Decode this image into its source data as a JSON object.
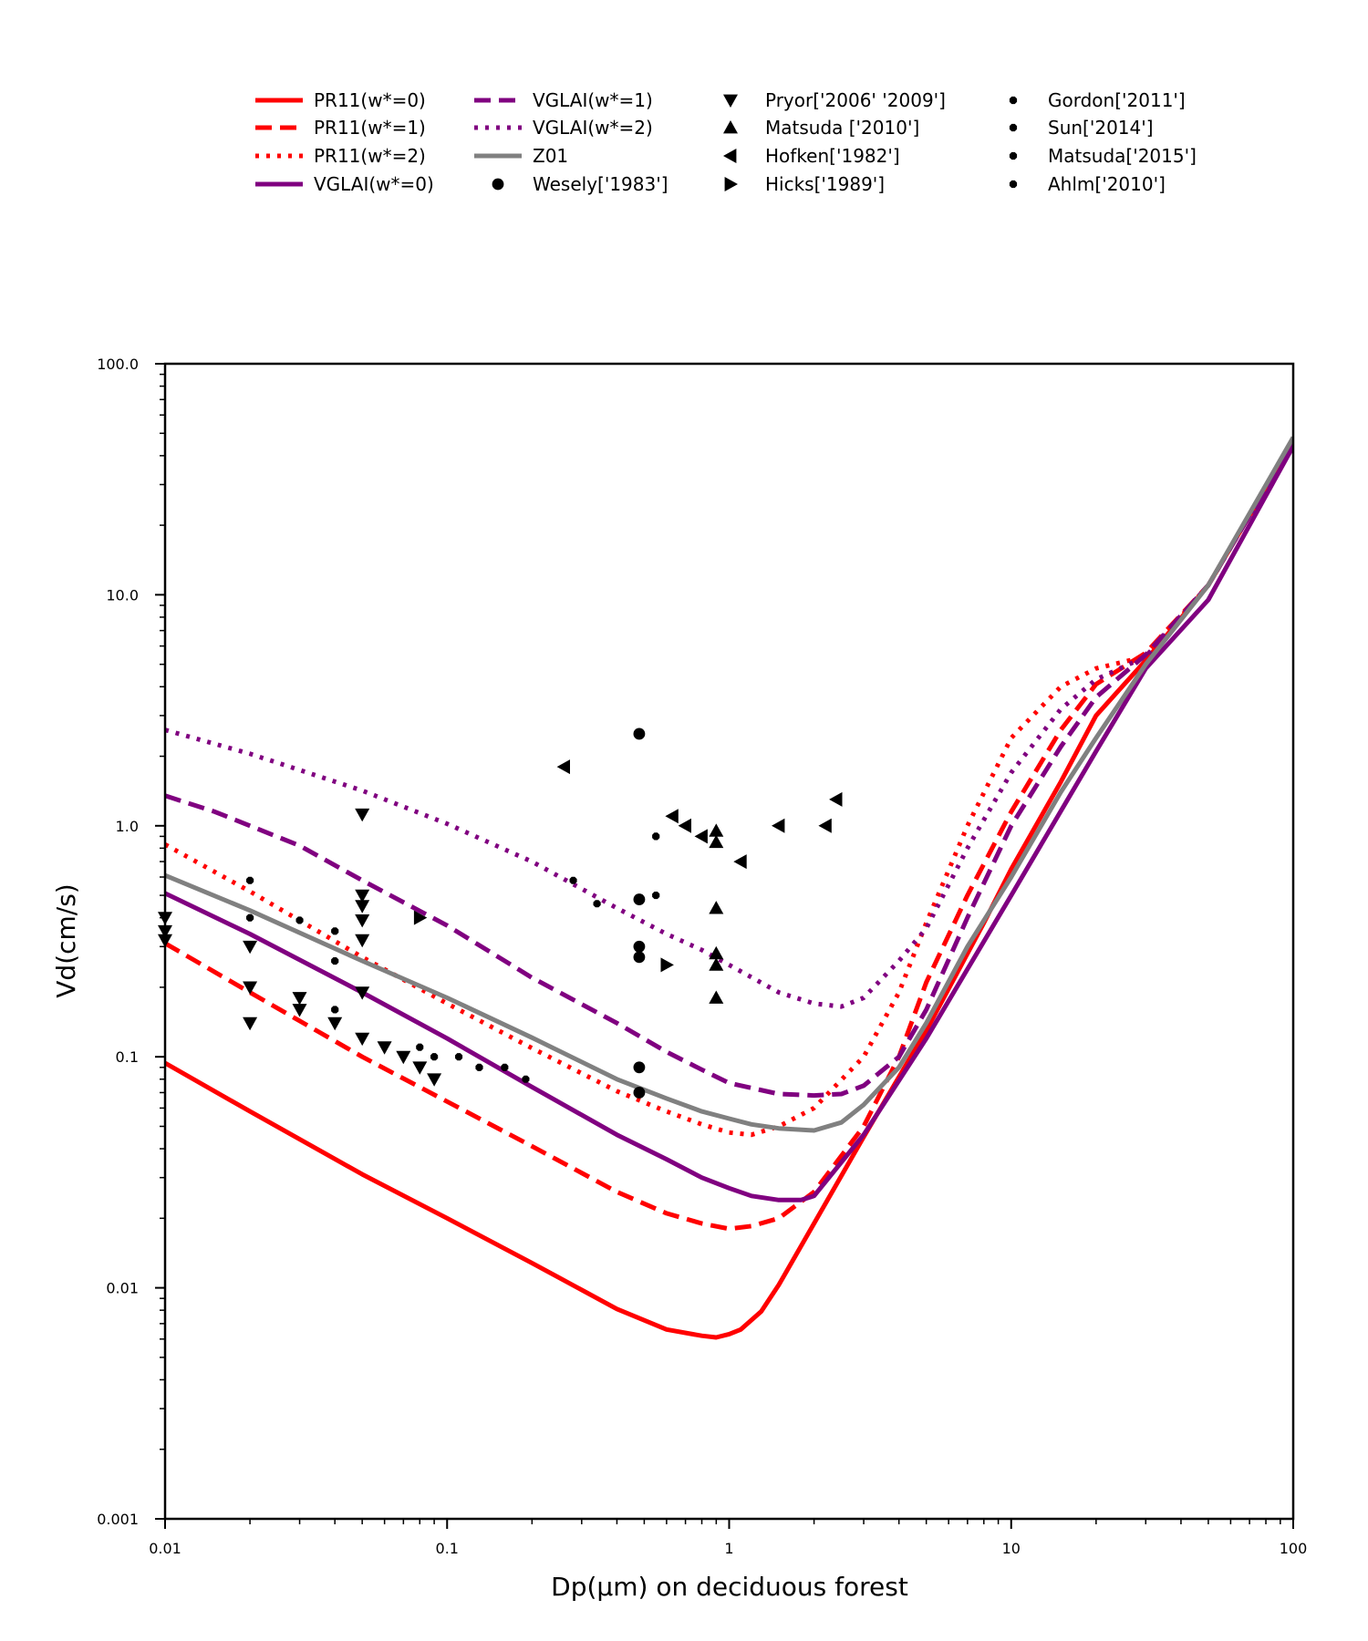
{
  "chart_data": {
    "type": "line",
    "xlabel": "Dp(μm) on deciduous forest",
    "ylabel": "Vd(cm/s)",
    "xscale": "log",
    "yscale": "log",
    "xlim": [
      0.01,
      100
    ],
    "ylim": [
      0.001,
      100
    ],
    "xticks": [
      0.01,
      0.1,
      1,
      10,
      100
    ],
    "xtick_labels": [
      "0.01",
      "0.1",
      "1",
      "10",
      "100"
    ],
    "yticks": [
      0.001,
      0.01,
      0.1,
      1,
      10,
      100
    ],
    "ytick_labels": [
      "0.001",
      "0.01",
      "0.1",
      "1.0",
      "10.0",
      "100.0"
    ],
    "grid": false,
    "legend_position": "top",
    "series": [
      {
        "name": "PR11(w*=0)",
        "kind": "line",
        "color": "#ff0000",
        "dash": "solid",
        "x": [
          0.01,
          0.02,
          0.05,
          0.1,
          0.2,
          0.4,
          0.6,
          0.8,
          0.9,
          1.0,
          1.1,
          1.3,
          1.5,
          2,
          3,
          5,
          8,
          10,
          15,
          20,
          30,
          50,
          100
        ],
        "y": [
          0.094,
          0.058,
          0.031,
          0.02,
          0.0128,
          0.0081,
          0.0066,
          0.0062,
          0.0061,
          0.0063,
          0.0066,
          0.0079,
          0.0103,
          0.019,
          0.045,
          0.13,
          0.38,
          0.65,
          1.55,
          3.0,
          5.2,
          11,
          46
        ]
      },
      {
        "name": "PR11(w*=1)",
        "kind": "line",
        "color": "#ff0000",
        "dash": "dashed",
        "x": [
          0.01,
          0.02,
          0.05,
          0.1,
          0.2,
          0.4,
          0.6,
          0.8,
          1.0,
          1.2,
          1.5,
          2,
          3,
          4,
          5,
          7,
          10,
          15,
          20,
          30,
          50,
          100
        ],
        "y": [
          0.31,
          0.19,
          0.1,
          0.064,
          0.041,
          0.026,
          0.021,
          0.019,
          0.018,
          0.0185,
          0.02,
          0.026,
          0.05,
          0.1,
          0.21,
          0.5,
          1.15,
          2.6,
          4.1,
          5.6,
          11,
          46
        ]
      },
      {
        "name": "PR11(w*=2)",
        "kind": "line",
        "color": "#ff0000",
        "dash": "dotted",
        "x": [
          0.01,
          0.02,
          0.05,
          0.1,
          0.2,
          0.4,
          0.6,
          0.8,
          1.0,
          1.2,
          1.5,
          2,
          3,
          4,
          5,
          7,
          10,
          15,
          20,
          30,
          50,
          100
        ],
        "y": [
          0.83,
          0.52,
          0.27,
          0.17,
          0.109,
          0.071,
          0.058,
          0.051,
          0.047,
          0.046,
          0.05,
          0.06,
          0.1,
          0.19,
          0.38,
          1.0,
          2.4,
          4.0,
          4.8,
          5.4,
          11,
          46
        ]
      },
      {
        "name": "VGLAI(w*=0)",
        "kind": "line",
        "color": "#800080",
        "dash": "solid",
        "x": [
          0.01,
          0.02,
          0.05,
          0.1,
          0.2,
          0.4,
          0.6,
          0.8,
          1.0,
          1.2,
          1.5,
          1.8,
          2,
          3,
          5,
          10,
          20,
          30,
          50,
          100
        ],
        "y": [
          0.51,
          0.34,
          0.19,
          0.12,
          0.074,
          0.046,
          0.036,
          0.03,
          0.027,
          0.025,
          0.024,
          0.024,
          0.025,
          0.046,
          0.12,
          0.5,
          2.1,
          4.8,
          9.5,
          44
        ]
      },
      {
        "name": "VGLAI(w*=1)",
        "kind": "line",
        "color": "#800080",
        "dash": "dashed",
        "x": [
          0.01,
          0.015,
          0.02,
          0.03,
          0.05,
          0.1,
          0.2,
          0.4,
          0.6,
          0.8,
          1.0,
          1.5,
          2,
          2.5,
          3,
          4,
          5,
          7,
          10,
          15,
          20,
          30,
          50,
          100
        ],
        "y": [
          1.35,
          1.15,
          1.0,
          0.82,
          0.58,
          0.37,
          0.22,
          0.14,
          0.105,
          0.088,
          0.077,
          0.069,
          0.068,
          0.069,
          0.075,
          0.1,
          0.16,
          0.4,
          1.0,
          2.2,
          3.6,
          5.5,
          11,
          46
        ]
      },
      {
        "name": "VGLAI(w*=2)",
        "kind": "line",
        "color": "#800080",
        "dash": "dotted",
        "x": [
          0.01,
          0.02,
          0.05,
          0.1,
          0.2,
          0.4,
          0.6,
          0.8,
          1.0,
          1.5,
          2,
          2.5,
          3,
          4,
          5,
          7,
          10,
          15,
          20,
          30,
          50,
          100
        ],
        "y": [
          2.6,
          2.05,
          1.42,
          1.02,
          0.7,
          0.44,
          0.34,
          0.29,
          0.25,
          0.19,
          0.17,
          0.165,
          0.18,
          0.26,
          0.36,
          0.8,
          1.7,
          3.2,
          4.3,
          5.4,
          11,
          46
        ]
      },
      {
        "name": "Z01",
        "kind": "line",
        "color": "#808080",
        "dash": "solid",
        "x": [
          0.01,
          0.02,
          0.05,
          0.1,
          0.2,
          0.4,
          0.6,
          0.8,
          1.0,
          1.2,
          1.5,
          2,
          2.5,
          3,
          4,
          5,
          7,
          10,
          15,
          20,
          30,
          50,
          100
        ],
        "y": [
          0.61,
          0.43,
          0.26,
          0.18,
          0.121,
          0.08,
          0.066,
          0.058,
          0.054,
          0.051,
          0.049,
          0.048,
          0.052,
          0.062,
          0.09,
          0.14,
          0.3,
          0.6,
          1.4,
          2.4,
          5.0,
          11,
          48
        ]
      },
      {
        "name": "Wesely['1983']",
        "kind": "scatter",
        "marker": "circle",
        "color": "#000000",
        "x": [
          0.48,
          0.48,
          0.48,
          0.48,
          0.48,
          0.48
        ],
        "y": [
          2.5,
          0.48,
          0.3,
          0.27,
          0.09,
          0.07
        ]
      },
      {
        "name": "Pryor['2006' '2009']",
        "kind": "scatter",
        "marker": "triangle-down",
        "color": "#000000",
        "x": [
          0.01,
          0.01,
          0.01,
          0.02,
          0.02,
          0.02,
          0.03,
          0.03,
          0.04,
          0.05,
          0.05,
          0.05,
          0.05,
          0.05,
          0.05,
          0.05,
          0.06,
          0.07,
          0.08,
          0.09
        ],
        "y": [
          0.4,
          0.35,
          0.32,
          0.3,
          0.2,
          0.14,
          0.18,
          0.16,
          0.14,
          1.12,
          0.5,
          0.45,
          0.39,
          0.32,
          0.19,
          0.12,
          0.11,
          0.1,
          0.09,
          0.08
        ]
      },
      {
        "name": "Matsuda ['2010']",
        "kind": "scatter",
        "marker": "triangle-up",
        "color": "#000000",
        "x": [
          0.9,
          0.9,
          0.9,
          0.9,
          0.9,
          0.9
        ],
        "y": [
          0.95,
          0.85,
          0.44,
          0.28,
          0.25,
          0.18
        ]
      },
      {
        "name": "Hofken['1982']",
        "kind": "scatter",
        "marker": "triangle-left",
        "color": "#000000",
        "x": [
          0.26,
          0.63,
          0.7,
          0.8,
          1.1,
          1.5,
          2.2,
          2.4
        ],
        "y": [
          1.8,
          1.1,
          1.0,
          0.9,
          0.7,
          1.0,
          1.0,
          1.3
        ]
      },
      {
        "name": "Hicks['1989']",
        "kind": "scatter",
        "marker": "triangle-right",
        "color": "#000000",
        "x": [
          0.08,
          0.6
        ],
        "y": [
          0.4,
          0.25
        ]
      },
      {
        "name": "Gordon['2011']",
        "kind": "scatter",
        "marker": "small-octagon",
        "color": "#000000",
        "x": [
          0.02,
          0.02,
          0.03,
          0.04,
          0.04,
          0.04,
          0.08,
          0.09,
          0.11,
          0.13,
          0.16,
          0.19
        ],
        "y": [
          0.58,
          0.4,
          0.39,
          0.35,
          0.26,
          0.16,
          0.11,
          0.1,
          0.1,
          0.09,
          0.09,
          0.08
        ]
      },
      {
        "name": "Sun['2014']",
        "kind": "scatter",
        "marker": "small-octagon",
        "color": "#000000",
        "x": [
          0.28,
          0.34
        ],
        "y": [
          0.58,
          0.46
        ]
      },
      {
        "name": "Matsuda['2015']",
        "kind": "scatter",
        "marker": "small-octagon",
        "color": "#000000",
        "x": [
          0.55,
          0.55
        ],
        "y": [
          0.9,
          0.5
        ]
      },
      {
        "name": "Ahlm['2010']",
        "kind": "scatter",
        "marker": "small-octagon",
        "color": "#000000",
        "x": [],
        "y": []
      }
    ]
  }
}
